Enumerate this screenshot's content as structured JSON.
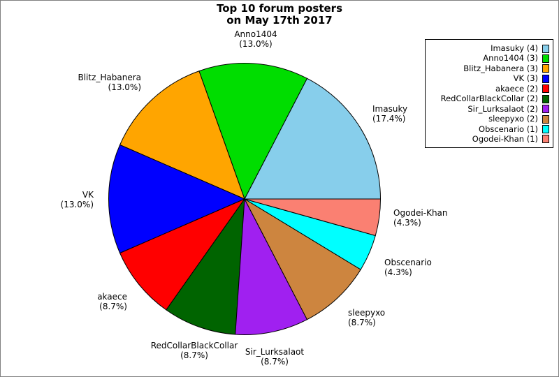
{
  "figure": {
    "title_line1": "Top 10 forum posters",
    "title_line2": "on May 17th 2017"
  },
  "chart_data": {
    "type": "pie",
    "title": "Top 10 forum posters on May 17th 2017",
    "legend_position": "upper right",
    "start_angle_deg": 0,
    "direction": "counterclockwise",
    "slices": [
      {
        "label": "Imasuky",
        "count": 4,
        "pct": 17.4,
        "pct_label": "(17.4%)",
        "legend_label": "Imasuky (4)",
        "color": "#87CEEB"
      },
      {
        "label": "Anno1404",
        "count": 3,
        "pct": 13.0,
        "pct_label": "(13.0%)",
        "legend_label": "Anno1404 (3)",
        "color": "#00DD00"
      },
      {
        "label": "Blitz_Habanera",
        "count": 3,
        "pct": 13.0,
        "pct_label": "(13.0%)",
        "legend_label": "Blitz_Habanera (3)",
        "color": "#FFA500"
      },
      {
        "label": "VK",
        "count": 3,
        "pct": 13.0,
        "pct_label": "(13.0%)",
        "legend_label": "VK (3)",
        "color": "#0000FF"
      },
      {
        "label": "akaece",
        "count": 2,
        "pct": 8.7,
        "pct_label": "(8.7%)",
        "legend_label": "akaece (2)",
        "color": "#FF0000"
      },
      {
        "label": "RedCollarBlackCollar",
        "count": 2,
        "pct": 8.7,
        "pct_label": "(8.7%)",
        "legend_label": "RedCollarBlackCollar (2)",
        "color": "#006400"
      },
      {
        "label": "Sir_Lurksalaot",
        "count": 2,
        "pct": 8.7,
        "pct_label": "(8.7%)",
        "legend_label": "Sir_Lurksalaot (2)",
        "color": "#A020F0"
      },
      {
        "label": "sleepyxo",
        "count": 2,
        "pct": 8.7,
        "pct_label": "(8.7%)",
        "legend_label": "sleepyxo (2)",
        "color": "#CD853F"
      },
      {
        "label": "Obscenario",
        "count": 1,
        "pct": 4.3,
        "pct_label": "(4.3%)",
        "legend_label": "Obscenario (1)",
        "color": "#00FFFF"
      },
      {
        "label": "Ogodei-Khan",
        "count": 1,
        "pct": 4.3,
        "pct_label": "(4.3%)",
        "legend_label": "Ogodei-Khan (1)",
        "color": "#FA8072"
      }
    ]
  }
}
